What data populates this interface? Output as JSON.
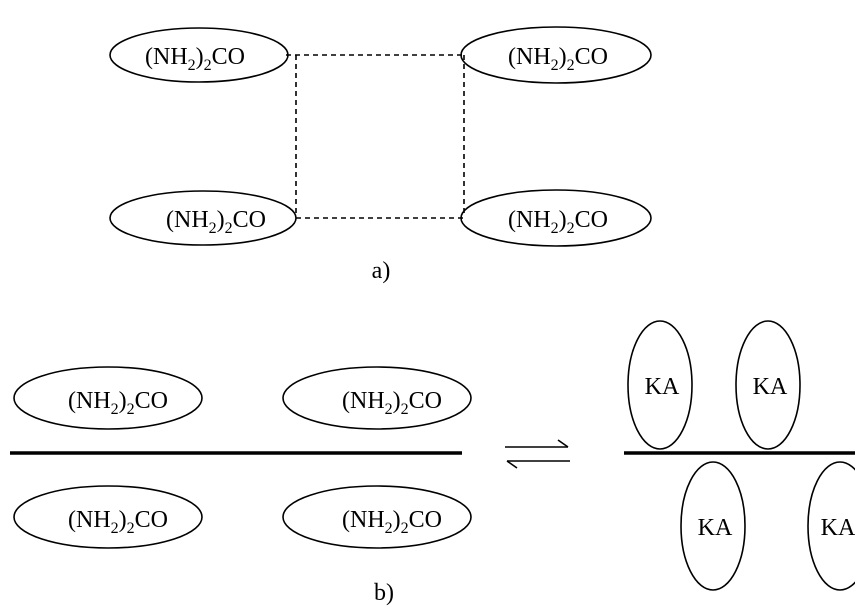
{
  "panel_a": {
    "molecules": [
      {
        "formula": {
          "pre": "(NH",
          "sub1": "2",
          "mid": ")",
          "sub2": "2",
          "post": "CO"
        }
      },
      {
        "formula": {
          "pre": "(NH",
          "sub1": "2",
          "mid": ")",
          "sub2": "2",
          "post": "CO"
        }
      },
      {
        "formula": {
          "pre": "(NH",
          "sub1": "2",
          "mid": ")",
          "sub2": "2",
          "post": "CO"
        }
      },
      {
        "formula": {
          "pre": "(NH",
          "sub1": "2",
          "mid": ")",
          "sub2": "2",
          "post": "CO"
        }
      }
    ],
    "label": "a)"
  },
  "panel_b": {
    "molecules": [
      {
        "formula": {
          "pre": "(NH",
          "sub1": "2",
          "mid": ")",
          "sub2": "2",
          "post": "CO"
        }
      },
      {
        "formula": {
          "pre": "(NH",
          "sub1": "2",
          "mid": ")",
          "sub2": "2",
          "post": "CO"
        }
      },
      {
        "formula": {
          "pre": "(NH",
          "sub1": "2",
          "mid": ")",
          "sub2": "2",
          "post": "CO"
        }
      },
      {
        "formula": {
          "pre": "(NH",
          "sub1": "2",
          "mid": ")",
          "sub2": "2",
          "post": "CO"
        }
      }
    ],
    "ka_labels": [
      "KA",
      "KA",
      "KA",
      "KA"
    ],
    "label": "b)"
  }
}
